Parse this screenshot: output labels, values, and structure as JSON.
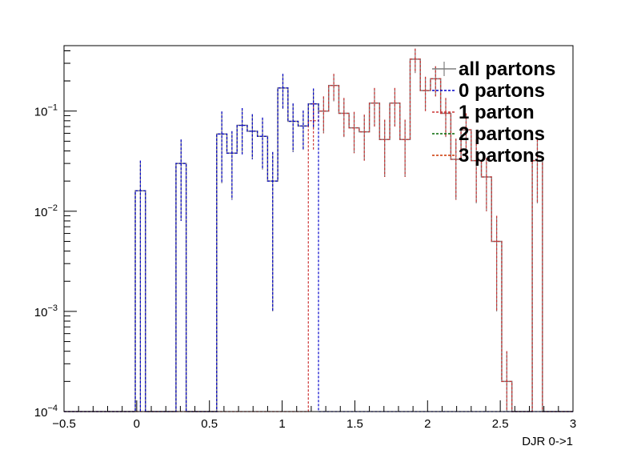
{
  "chart_data": {
    "type": "histogram-step",
    "title": "",
    "xlabel": "DJR 0->1",
    "ylabel": "",
    "xlim": [
      -0.5,
      3
    ],
    "ylim": [
      0.0001,
      0.45
    ],
    "yscale": "log",
    "grid": false,
    "legend_position": "top-right",
    "x_ticks": [
      {
        "value": -0.5,
        "label": "−0.5"
      },
      {
        "value": 0,
        "label": "0"
      },
      {
        "value": 0.5,
        "label": "0.5"
      },
      {
        "value": 1,
        "label": "1"
      },
      {
        "value": 1.5,
        "label": "1.5"
      },
      {
        "value": 2,
        "label": "2"
      },
      {
        "value": 2.5,
        "label": "2.5"
      },
      {
        "value": 3,
        "label": "3"
      }
    ],
    "y_ticks": [
      {
        "value": 0.0001,
        "base": "10",
        "exp": "−4"
      },
      {
        "value": 0.001,
        "base": "10",
        "exp": "−3"
      },
      {
        "value": 0.01,
        "base": "10",
        "exp": "−2"
      },
      {
        "value": 0.1,
        "base": "10",
        "exp": "−1"
      }
    ],
    "bin_width": 0.07,
    "bin_start": -0.5,
    "series": [
      {
        "name": "all partons",
        "color": "#7f7f7f",
        "style": "solid",
        "values": [
          0,
          0,
          0,
          0,
          0,
          0,
          0,
          0.016,
          0,
          0,
          0,
          0.03,
          0,
          0,
          0,
          0.059,
          0.038,
          0.072,
          0.063,
          0.056,
          0.02,
          0.17,
          0.079,
          0.071,
          0.118,
          0.1,
          0.18,
          0.095,
          0.068,
          0.062,
          0.12,
          0.052,
          0.12,
          0.052,
          0.33,
          0.16,
          0.21,
          0.095,
          0.033,
          0.065,
          0.032,
          0.022,
          0.005,
          0.0002,
          0,
          0,
          0.032,
          0,
          0,
          0,
          0
        ],
        "errors": [
          0,
          0,
          0,
          0,
          0,
          0,
          0,
          0.016,
          0,
          0,
          0,
          0.022,
          0,
          0,
          0,
          0.04,
          0.025,
          0.035,
          0.03,
          0.03,
          0.019,
          0.065,
          0.04,
          0.03,
          0.05,
          0.04,
          0.055,
          0.04,
          0.03,
          0.03,
          0.05,
          0.03,
          0.05,
          0.03,
          0.09,
          0.06,
          0.07,
          0.04,
          0.02,
          0.03,
          0.02,
          0.012,
          0.004,
          0.0002,
          0,
          0,
          0.02,
          0,
          0,
          0,
          0
        ]
      },
      {
        "name": "0 partons",
        "color": "#0000cc",
        "style": "dashed",
        "values": [
          0,
          0,
          0,
          0,
          0,
          0,
          0,
          0.016,
          0,
          0,
          0,
          0.03,
          0,
          0,
          0,
          0.059,
          0.038,
          0.072,
          0.063,
          0.056,
          0.02,
          0.17,
          0.079,
          0.071,
          0.118,
          0,
          0,
          0,
          0,
          0,
          0,
          0,
          0,
          0,
          0,
          0,
          0,
          0,
          0,
          0,
          0,
          0,
          0,
          0,
          0,
          0,
          0,
          0,
          0,
          0,
          0
        ],
        "errors": [
          0,
          0,
          0,
          0,
          0,
          0,
          0,
          0.016,
          0,
          0,
          0,
          0.022,
          0,
          0,
          0,
          0.04,
          0.025,
          0.035,
          0.03,
          0.03,
          0.019,
          0.065,
          0.04,
          0.03,
          0.05,
          0,
          0,
          0,
          0,
          0,
          0,
          0,
          0,
          0,
          0,
          0,
          0,
          0,
          0,
          0,
          0,
          0,
          0,
          0,
          0,
          0,
          0,
          0,
          0,
          0,
          0
        ]
      },
      {
        "name": "1 parton",
        "color": "#cc3333",
        "style": "dashed",
        "values": [
          0,
          0,
          0,
          0,
          0,
          0,
          0,
          0,
          0,
          0,
          0,
          0,
          0,
          0,
          0,
          0,
          0,
          0,
          0,
          0,
          0,
          0,
          0,
          0,
          0.08,
          0.1,
          0.18,
          0.095,
          0.068,
          0.062,
          0.12,
          0.052,
          0.12,
          0.052,
          0.33,
          0.16,
          0.21,
          0.095,
          0.033,
          0.065,
          0.032,
          0.022,
          0.005,
          0.0002,
          0,
          0,
          0.032,
          0,
          0,
          0,
          0
        ],
        "errors": [
          0,
          0,
          0,
          0,
          0,
          0,
          0,
          0,
          0,
          0,
          0,
          0,
          0,
          0,
          0,
          0,
          0,
          0,
          0,
          0,
          0,
          0,
          0,
          0,
          0.04,
          0.04,
          0.055,
          0.04,
          0.03,
          0.03,
          0.05,
          0.03,
          0.05,
          0.03,
          0.09,
          0.06,
          0.07,
          0.04,
          0.02,
          0.03,
          0.02,
          0.012,
          0.004,
          0.0002,
          0,
          0,
          0.02,
          0,
          0,
          0,
          0
        ]
      },
      {
        "name": "2 partons",
        "color": "#006600",
        "style": "dashed",
        "values": [],
        "errors": []
      },
      {
        "name": "3 partons",
        "color": "#cc3300",
        "style": "dashed",
        "values": [],
        "errors": []
      }
    ]
  }
}
